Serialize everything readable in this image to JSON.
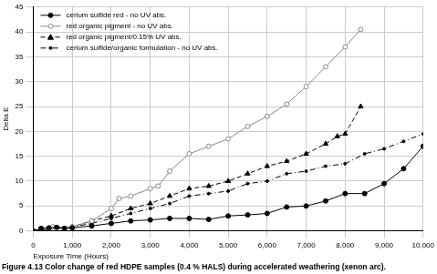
{
  "chart_data": {
    "type": "line",
    "title": "Figure 4.13 Color change of red HDPE samples (0.4 % HALS) during accelerated weathering (xenon arc).",
    "x_label": "Exposure Time (Hours)",
    "y_label": "Delta E",
    "xlim": [
      0,
      10000
    ],
    "xticks": [
      0,
      1000,
      2000,
      3000,
      4000,
      5000,
      6000,
      7000,
      8000,
      9000,
      10000
    ],
    "ylim": [
      0,
      45
    ],
    "yticks": [
      0,
      5,
      10,
      15,
      20,
      25,
      30,
      35,
      40,
      45
    ],
    "grid": true,
    "legend": "top-left",
    "series": [
      {
        "name": "cerium sulfide red - no UV abs.",
        "color": "#000000",
        "marker": "circle",
        "line_style": "solid",
        "x": [
          0,
          200,
          400,
          600,
          800,
          1000,
          1500,
          2000,
          2500,
          3000,
          3500,
          4000,
          4500,
          5000,
          5500,
          6000,
          6500,
          7000,
          7500,
          8000,
          8500,
          9000,
          9500,
          10000
        ],
        "values": [
          0,
          0.5,
          0.6,
          0.7,
          0.5,
          0.6,
          1,
          1.5,
          2,
          2.2,
          2.5,
          2.5,
          2.3,
          3,
          3.2,
          3.5,
          4.8,
          5,
          6,
          7.5,
          7.5,
          9.5,
          12.5,
          17
        ]
      },
      {
        "name": "red organic pigment - no UV abs.",
        "color": "#888888",
        "marker": "circle-open",
        "line_style": "solid",
        "x": [
          0,
          500,
          1000,
          1500,
          2000,
          2200,
          2500,
          3000,
          3200,
          3500,
          4000,
          4500,
          5000,
          5500,
          6000,
          6500,
          7000,
          7500,
          8000,
          8400
        ],
        "values": [
          0,
          0.8,
          0.8,
          2,
          4.5,
          6.5,
          7,
          8.5,
          9,
          12,
          15.5,
          17,
          18.5,
          21,
          23,
          25.5,
          29,
          33,
          37,
          40.5
        ]
      },
      {
        "name": "red organic pigment/0.15% UV abs.",
        "color": "#000000",
        "marker": "triangle",
        "line_style": "dashed",
        "x": [
          0,
          1000,
          1500,
          2000,
          2500,
          3000,
          3500,
          4000,
          4500,
          5000,
          5500,
          6000,
          6500,
          7000,
          7500,
          7800,
          8000,
          8400
        ],
        "values": [
          0,
          0.8,
          2,
          3,
          4.5,
          5.5,
          7,
          8.5,
          9,
          10,
          11.5,
          13,
          14,
          15.5,
          17.5,
          19,
          19.5,
          25
        ]
      },
      {
        "name": "cerium sulfide/organic formulation - no UV abs.",
        "color": "#000000",
        "marker": "dot",
        "line_style": "dashdot",
        "x": [
          0,
          1000,
          1500,
          2000,
          2500,
          3000,
          3500,
          4000,
          4500,
          5000,
          5500,
          6000,
          6500,
          7000,
          7500,
          8000,
          8500,
          9000,
          9500,
          10000
        ],
        "values": [
          0,
          0.8,
          1.5,
          2.5,
          3.5,
          4.5,
          5.5,
          7,
          7.5,
          8,
          9.5,
          10,
          11.5,
          12,
          13,
          13.5,
          15.5,
          16.5,
          18,
          19.5
        ]
      }
    ]
  }
}
